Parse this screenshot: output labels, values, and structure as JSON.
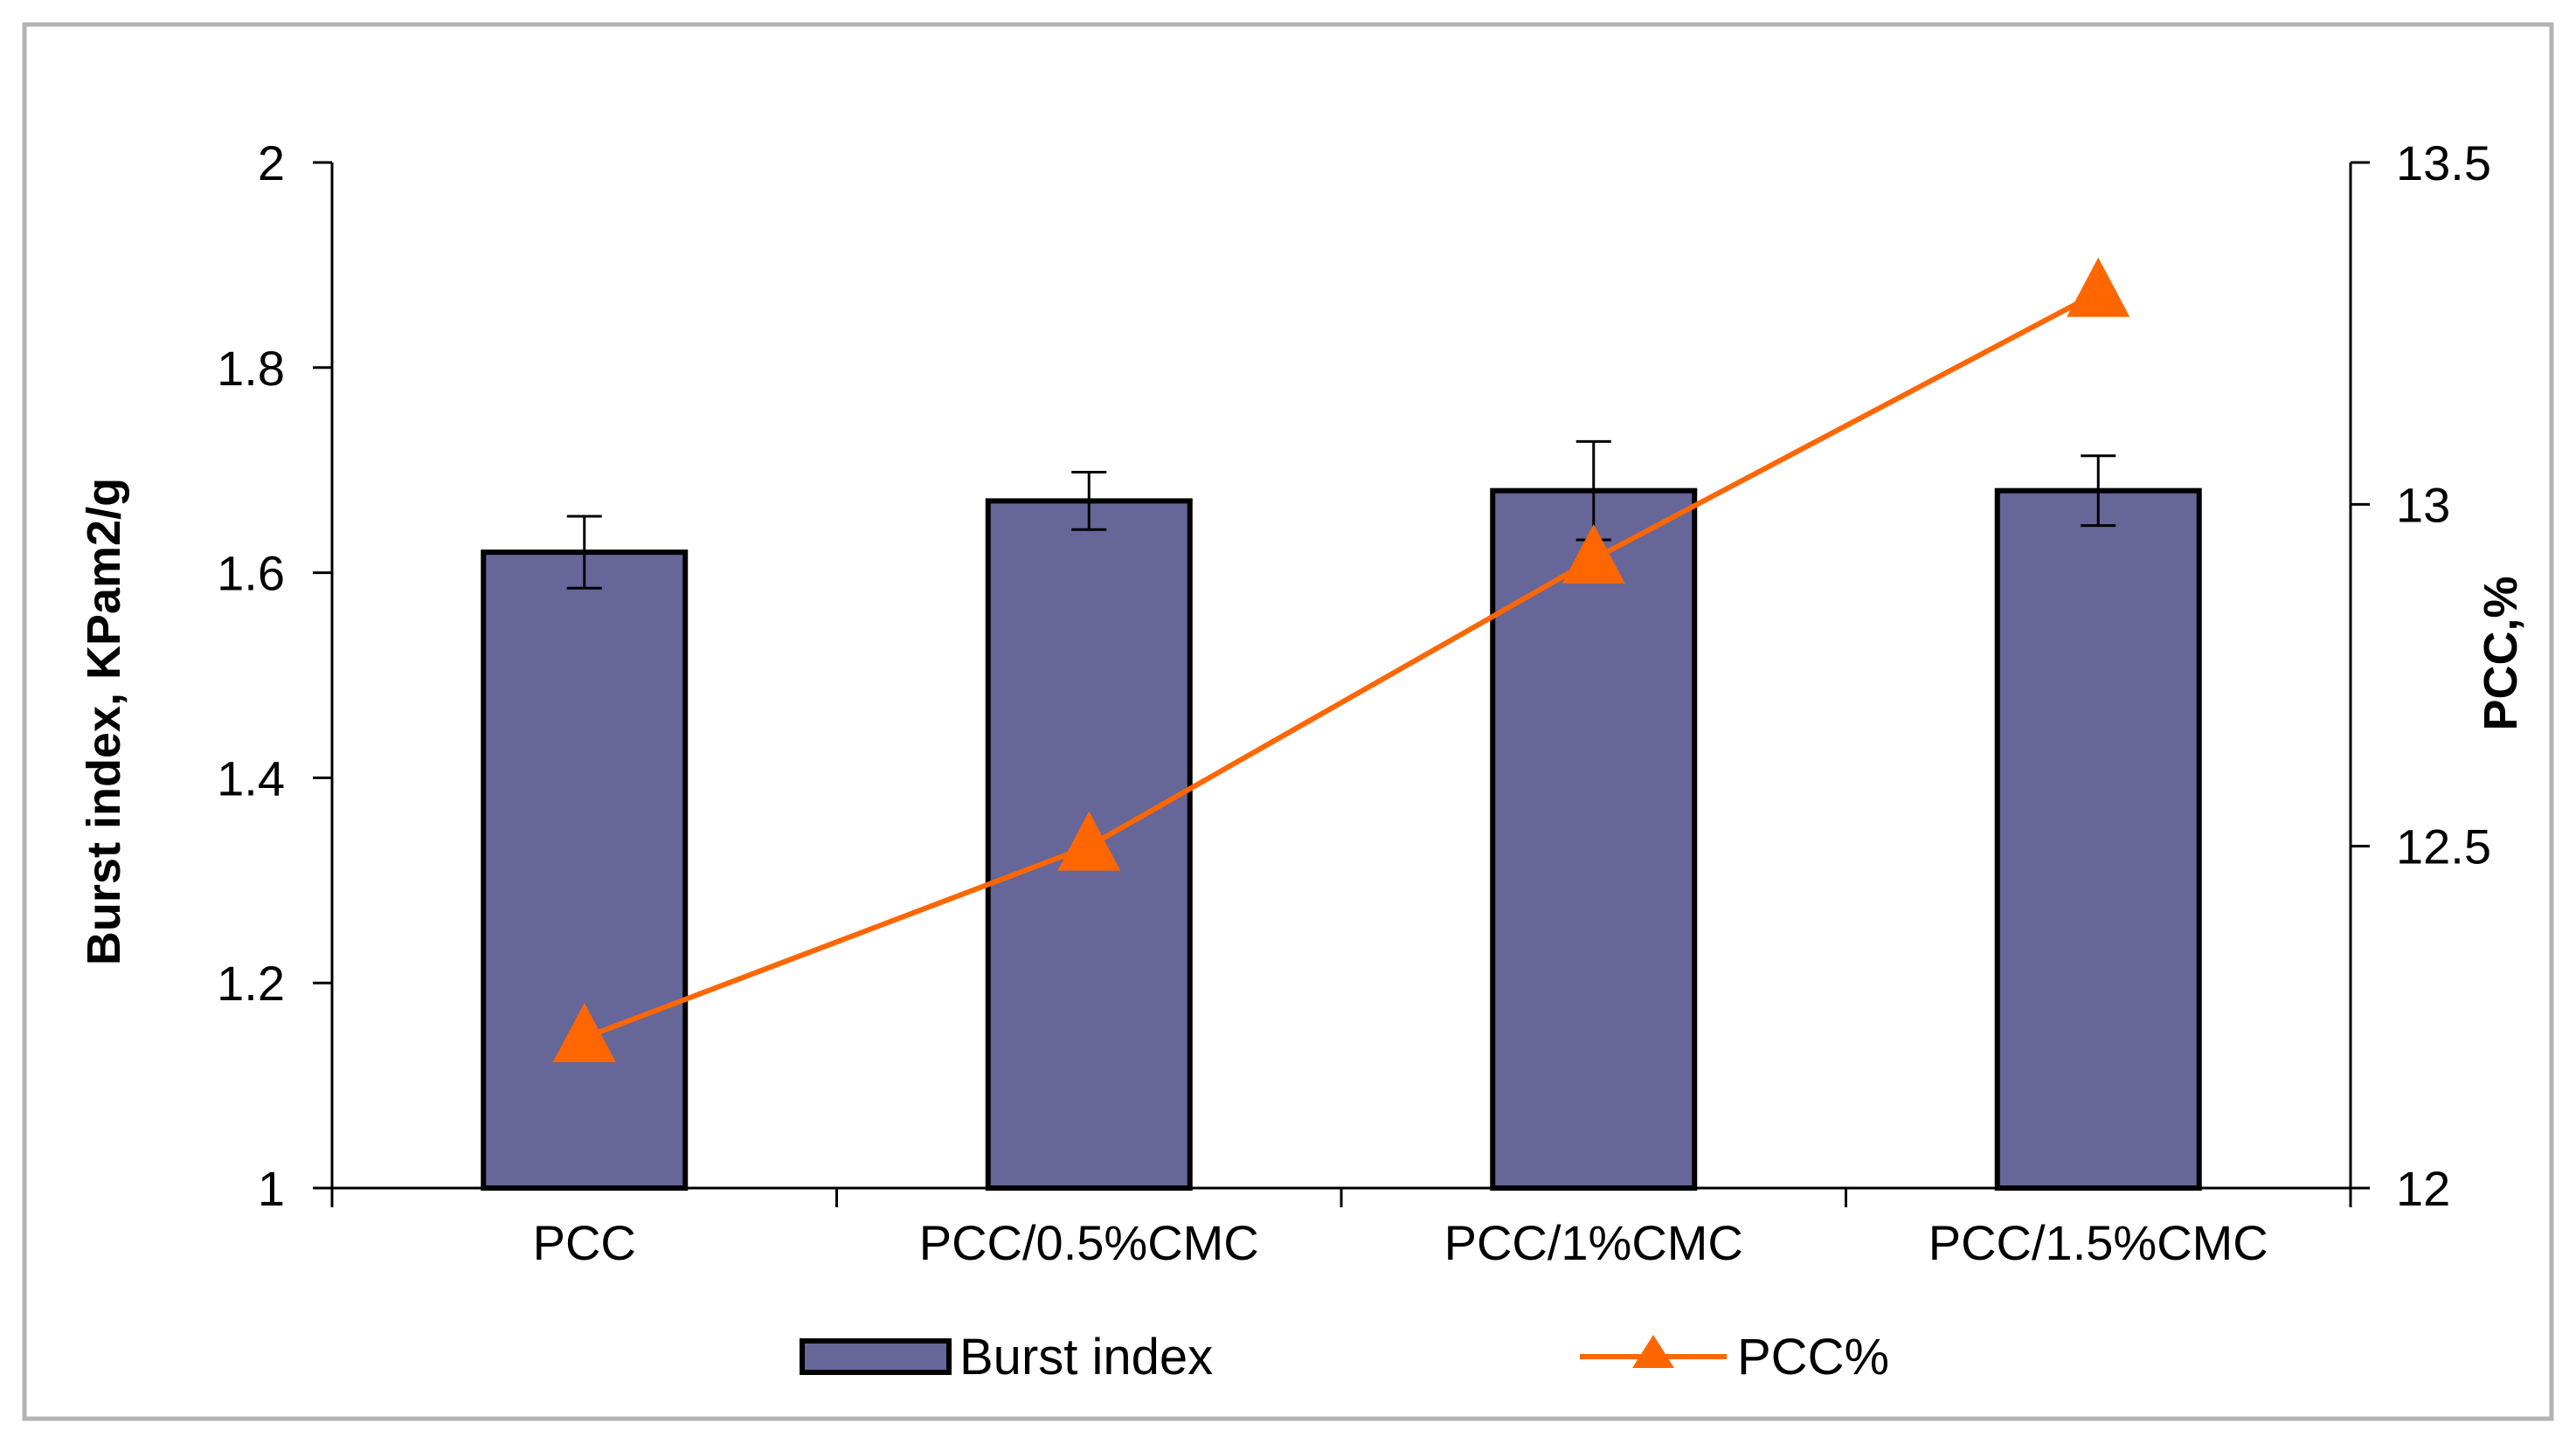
{
  "chart_data": {
    "type": "bar",
    "categories": [
      "PCC",
      "PCC/0.5%CMC",
      "PCC/1%CMC",
      "PCC/1.5%CMC"
    ],
    "series": [
      {
        "name": "Burst index",
        "type": "bar",
        "axis": "left",
        "values": [
          1.62,
          1.67,
          1.68,
          1.68
        ],
        "error": [
          0.035,
          0.028,
          0.048,
          0.034
        ]
      },
      {
        "name": "PCC%",
        "type": "line",
        "axis": "right",
        "marker": "triangle",
        "values": [
          12.22,
          12.5,
          12.92,
          13.31
        ]
      }
    ],
    "ylabel": "Burst index, KPam2/g",
    "y2label": "PCC,%",
    "ylim": [
      1,
      2
    ],
    "yticks": [
      "1",
      "1.2",
      "1.4",
      "1.6",
      "1.8",
      "2"
    ],
    "y2lim": [
      12,
      13.5
    ],
    "y2ticks": [
      "12",
      "12.5",
      "13",
      "13.5"
    ],
    "grid": false,
    "legend": "bottom",
    "colors": {
      "bar_fill": "#666699",
      "bar_stroke": "#000000",
      "line": "#ff6600",
      "axis": "#000000",
      "frame": "#b3b3b3"
    }
  }
}
